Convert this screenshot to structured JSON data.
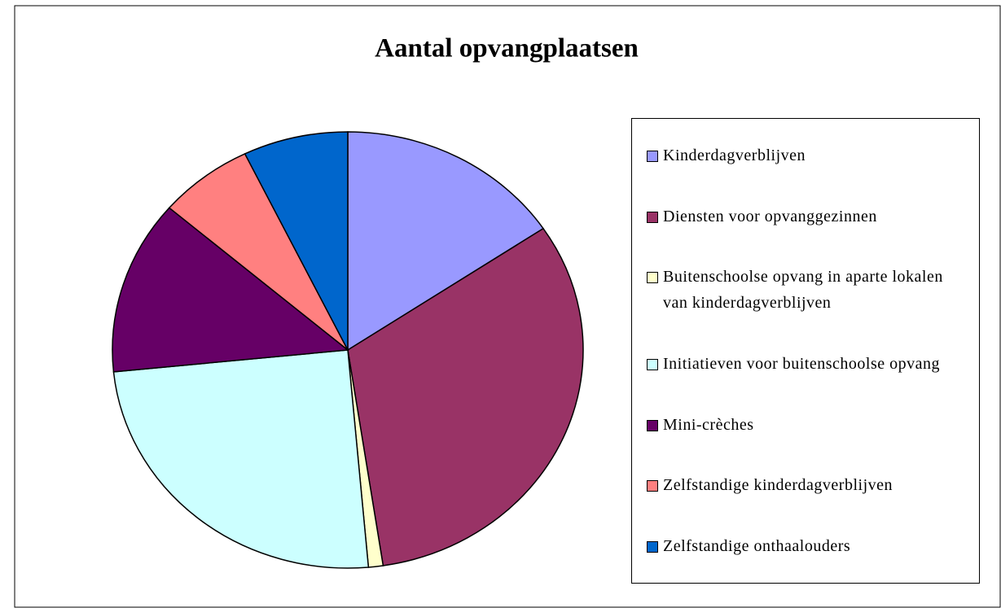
{
  "chart_data": {
    "type": "pie",
    "title": "Aantal opvangplaatsen",
    "categories": [
      "Kinderdagverblijven",
      "Diensten voor opvanggezinnen",
      "Buitenschoolse opvang in aparte lokalen van kinderdagverblijven",
      "Initiatieven voor buitenschoolse opvang",
      "Mini-crèches",
      "Zelfstandige kinderdagverblijven",
      "Zelfstandige onthaalouders"
    ],
    "values": [
      15.6,
      32,
      1,
      24.8,
      12.9,
      6.5,
      7.2
    ],
    "colors": [
      "#9999ff",
      "#993366",
      "#ffffcc",
      "#ccffff",
      "#660066",
      "#ff8080",
      "#0066cc"
    ],
    "legend": "right"
  }
}
